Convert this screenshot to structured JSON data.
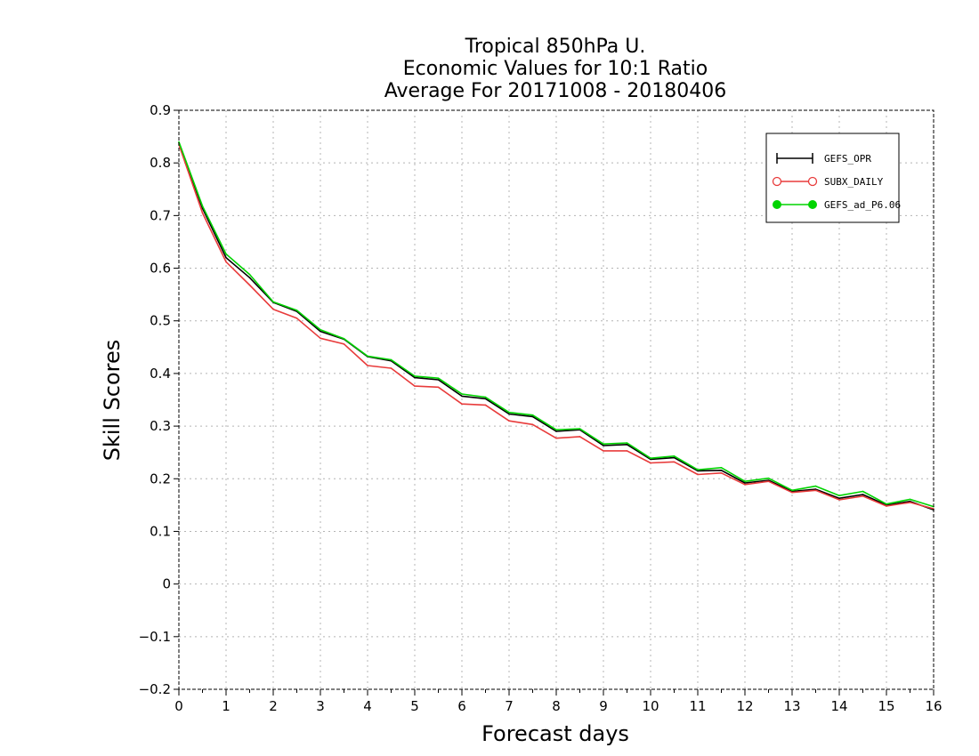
{
  "chart_data": {
    "type": "line",
    "title_lines": [
      "Tropical 850hPa U.",
      "Economic Values for 10:1 Ratio",
      "Average For 20171008 - 20180406"
    ],
    "xlabel": "Forecast days",
    "ylabel": "Skill Scores",
    "xlim": [
      0,
      16
    ],
    "ylim": [
      -0.2,
      0.9
    ],
    "xticks": [
      0,
      1,
      2,
      3,
      4,
      5,
      6,
      7,
      8,
      9,
      10,
      11,
      12,
      13,
      14,
      15,
      16
    ],
    "xtick_labels": [
      "0",
      "1",
      "2",
      "3",
      "4",
      "5",
      "6",
      "7",
      "8",
      "9",
      "10",
      "11",
      "12",
      "13",
      "14",
      "15",
      "16"
    ],
    "yticks": [
      -0.2,
      -0.1,
      0,
      0.1,
      0.2,
      0.3,
      0.4,
      0.5,
      0.6,
      0.7,
      0.8,
      0.9
    ],
    "ytick_labels": [
      "−0.2",
      "−0.1",
      "0",
      "0.1",
      "0.2",
      "0.3",
      "0.4",
      "0.5",
      "0.6",
      "0.7",
      "0.8",
      "0.9"
    ],
    "grid": true,
    "legend_position": "top-right",
    "x": [
      0,
      0.5,
      1,
      1.5,
      2,
      2.5,
      3,
      3.5,
      4,
      4.5,
      5,
      5.5,
      6,
      6.5,
      7,
      7.5,
      8,
      8.5,
      9,
      9.5,
      10,
      10.5,
      11,
      11.5,
      12,
      12.5,
      13,
      13.5,
      14,
      14.5,
      15,
      15.5,
      16
    ],
    "series": [
      {
        "name": "GEFS_OPR",
        "color": "#000000",
        "marker": "plus",
        "values": [
          0.838,
          0.714,
          0.62,
          0.582,
          0.535,
          0.518,
          0.48,
          0.465,
          0.432,
          0.424,
          0.392,
          0.388,
          0.357,
          0.352,
          0.323,
          0.318,
          0.29,
          0.293,
          0.263,
          0.265,
          0.237,
          0.24,
          0.215,
          0.216,
          0.192,
          0.197,
          0.176,
          0.18,
          0.163,
          0.17,
          0.15,
          0.157,
          0.141
        ]
      },
      {
        "name": "SUBX_DAILY",
        "color": "#e83b3b",
        "marker": "open-circle",
        "values": [
          0.835,
          0.705,
          0.612,
          0.568,
          0.522,
          0.505,
          0.467,
          0.456,
          0.415,
          0.41,
          0.376,
          0.374,
          0.342,
          0.34,
          0.31,
          0.303,
          0.277,
          0.28,
          0.253,
          0.253,
          0.23,
          0.232,
          0.208,
          0.211,
          0.189,
          0.195,
          0.174,
          0.178,
          0.16,
          0.167,
          0.148,
          0.155,
          0.143
        ]
      },
      {
        "name": "GEFS_ad_P6.06",
        "color": "#00d400",
        "marker": "filled-circle",
        "values": [
          0.84,
          0.718,
          0.627,
          0.588,
          0.536,
          0.52,
          0.483,
          0.466,
          0.433,
          0.426,
          0.395,
          0.391,
          0.361,
          0.355,
          0.326,
          0.321,
          0.293,
          0.295,
          0.266,
          0.268,
          0.239,
          0.243,
          0.217,
          0.221,
          0.195,
          0.201,
          0.178,
          0.186,
          0.168,
          0.176,
          0.152,
          0.161,
          0.147
        ]
      }
    ]
  }
}
